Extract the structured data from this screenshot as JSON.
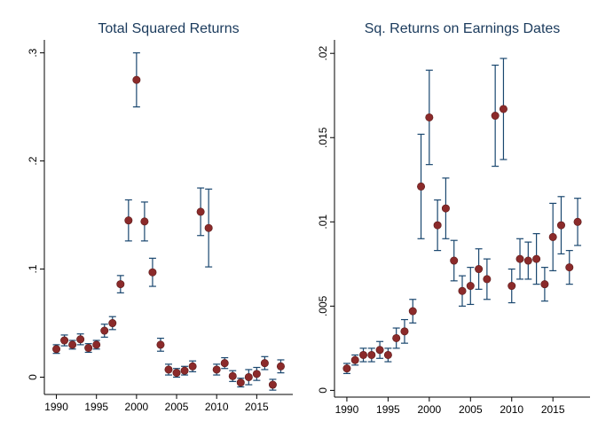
{
  "chart_data": [
    {
      "type": "scatter",
      "title": "Total Squared Returns",
      "color": "#8b2a2a",
      "error_color": "#1a476f",
      "x": [
        1990,
        1991,
        1992,
        1993,
        1994,
        1995,
        1996,
        1997,
        1998,
        1999,
        2000,
        2001,
        2002,
        2003,
        2004,
        2005,
        2006,
        2007,
        2008,
        2009,
        2010,
        2011,
        2012,
        2013,
        2014,
        2015,
        2016,
        2017,
        2018
      ],
      "values": [
        0.026,
        0.034,
        0.03,
        0.035,
        0.027,
        0.03,
        0.043,
        0.05,
        0.086,
        0.145,
        0.275,
        0.144,
        0.097,
        0.03,
        0.007,
        0.004,
        0.006,
        0.01,
        0.153,
        0.138,
        0.007,
        0.013,
        0.001,
        -0.005,
        0.0,
        0.003,
        0.013,
        -0.007,
        0.01
      ],
      "errors": [
        0.004,
        0.005,
        0.004,
        0.005,
        0.004,
        0.004,
        0.006,
        0.006,
        0.008,
        0.019,
        0.025,
        0.018,
        0.013,
        0.006,
        0.005,
        0.004,
        0.004,
        0.005,
        0.022,
        0.036,
        0.005,
        0.005,
        0.005,
        0.004,
        0.007,
        0.006,
        0.006,
        0.005,
        0.006
      ],
      "xlim": [
        1988.5,
        2019.5
      ],
      "xticks": [
        1990,
        1995,
        2000,
        2005,
        2010,
        2015
      ],
      "ylim": [
        -0.016,
        0.312
      ],
      "yticks": [
        0,
        {
          "value": 0.1,
          "label": ".1"
        },
        {
          "value": 0.2,
          "label": ".2"
        },
        {
          "value": 0.3,
          "label": ".3"
        }
      ]
    },
    {
      "type": "scatter",
      "title": "Sq. Returns on Earnings Dates",
      "color": "#8b2a2a",
      "error_color": "#1a476f",
      "x": [
        1990,
        1991,
        1992,
        1993,
        1994,
        1995,
        1996,
        1997,
        1998,
        1999,
        2000,
        2001,
        2002,
        2003,
        2004,
        2005,
        2006,
        2007,
        2008,
        2009,
        2010,
        2011,
        2012,
        2013,
        2014,
        2015,
        2016,
        2017,
        2018
      ],
      "values": [
        0.0013,
        0.0018,
        0.0021,
        0.0021,
        0.0024,
        0.0021,
        0.0031,
        0.0035,
        0.0047,
        0.0121,
        0.0162,
        0.0098,
        0.0108,
        0.0077,
        0.0059,
        0.0062,
        0.0072,
        0.0066,
        0.0163,
        0.0167,
        0.0062,
        0.0078,
        0.0077,
        0.0078,
        0.0063,
        0.0091,
        0.0098,
        0.0073,
        0.01
      ],
      "errors": [
        0.0003,
        0.0003,
        0.0004,
        0.0004,
        0.0005,
        0.0004,
        0.0006,
        0.0007,
        0.0007,
        0.0031,
        0.0028,
        0.0015,
        0.0018,
        0.0012,
        0.0009,
        0.0011,
        0.0012,
        0.0012,
        0.003,
        0.003,
        0.001,
        0.0012,
        0.0011,
        0.0015,
        0.001,
        0.002,
        0.0017,
        0.001,
        0.0014
      ],
      "xlim": [
        1988.5,
        2019.5
      ],
      "xticks": [
        1990,
        1995,
        2000,
        2005,
        2010,
        2015
      ],
      "ylim": [
        -0.0004,
        0.0208
      ],
      "yticks": [
        0,
        {
          "value": 0.005,
          "label": ".005"
        },
        {
          "value": 0.01,
          "label": ".01"
        },
        {
          "value": 0.015,
          "label": ".015"
        },
        {
          "value": 0.02,
          "label": ".02"
        }
      ]
    }
  ]
}
